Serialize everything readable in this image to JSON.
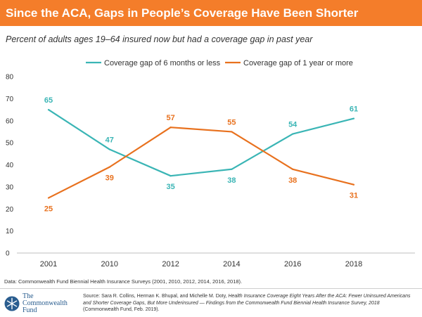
{
  "title": "Since the ACA, Gaps in People’s Coverage Have Been Shorter",
  "subtitle": "Percent of adults ages 19–64 insured now but had a coverage gap in past year",
  "data_note": "Data: Commonwealth Fund Biennial Health Insurance Surveys (2001, 2010, 2012, 2014, 2016, 2018).",
  "source": {
    "prefix": "Source: Sara R. Collins, Herman K. Bhupal, and Michelle M. Doty, ",
    "italic_title": "Health Insurance Coverage Eight Years After the ACA: Fewer Uninsured Americans and Shorter Coverage Gaps, But More Underinsured — Findings from the Commonwealth Fund Biennial Health Insurance Survey, 2018",
    "suffix": " (Commonwealth Fund, Feb. 2019)."
  },
  "logo": {
    "line1": "The",
    "line2": "Commonwealth",
    "line3": "Fund",
    "icon": "snowflake-icon"
  },
  "colors": {
    "title_bar": "#f47d2a",
    "teal": "#3ab5b5",
    "orange": "#e8711e"
  },
  "chart_data": {
    "type": "line",
    "x": [
      "2001",
      "2010",
      "2012",
      "2014",
      "2016",
      "2018"
    ],
    "ylim": [
      0,
      80
    ],
    "yticks": [
      0,
      10,
      20,
      30,
      40,
      50,
      60,
      70,
      80
    ],
    "grid": false,
    "legend": "top",
    "series": [
      {
        "name": "Coverage gap of 6 months or less",
        "color": "#3ab5b5",
        "values": [
          65,
          47,
          35,
          38,
          54,
          61
        ]
      },
      {
        "name": "Coverage gap of 1 year or more",
        "color": "#e8711e",
        "values": [
          25,
          39,
          57,
          55,
          38,
          31
        ]
      }
    ]
  }
}
